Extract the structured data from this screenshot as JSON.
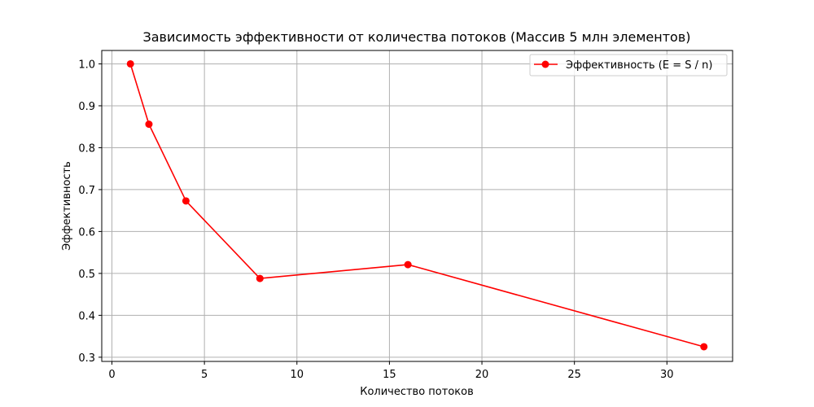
{
  "chart_data": {
    "type": "line",
    "title": "Зависимость эффективности от количества потоков (Массив 5 млн элементов)",
    "xlabel": "Количество потоков",
    "ylabel": "Эффективность",
    "xlim": [
      -0.55,
      33.55
    ],
    "ylim": [
      0.29,
      1.032
    ],
    "xticks": [
      0,
      5,
      10,
      15,
      20,
      25,
      30
    ],
    "xtick_labels": [
      "0",
      "5",
      "10",
      "15",
      "20",
      "25",
      "30"
    ],
    "yticks": [
      0.3,
      0.4,
      0.5,
      0.6,
      0.7,
      0.8,
      0.9,
      1.0
    ],
    "ytick_labels": [
      "0.3",
      "0.4",
      "0.5",
      "0.6",
      "0.7",
      "0.8",
      "0.9",
      "1.0"
    ],
    "grid": true,
    "legend_position": "top-right",
    "series": [
      {
        "name": "Эффективность (E = S / n)",
        "color": "#ff0000",
        "marker": "circle",
        "x": [
          1,
          2,
          4,
          8,
          16,
          32
        ],
        "y": [
          1.0,
          0.856,
          0.673,
          0.488,
          0.521,
          0.325
        ]
      }
    ]
  }
}
